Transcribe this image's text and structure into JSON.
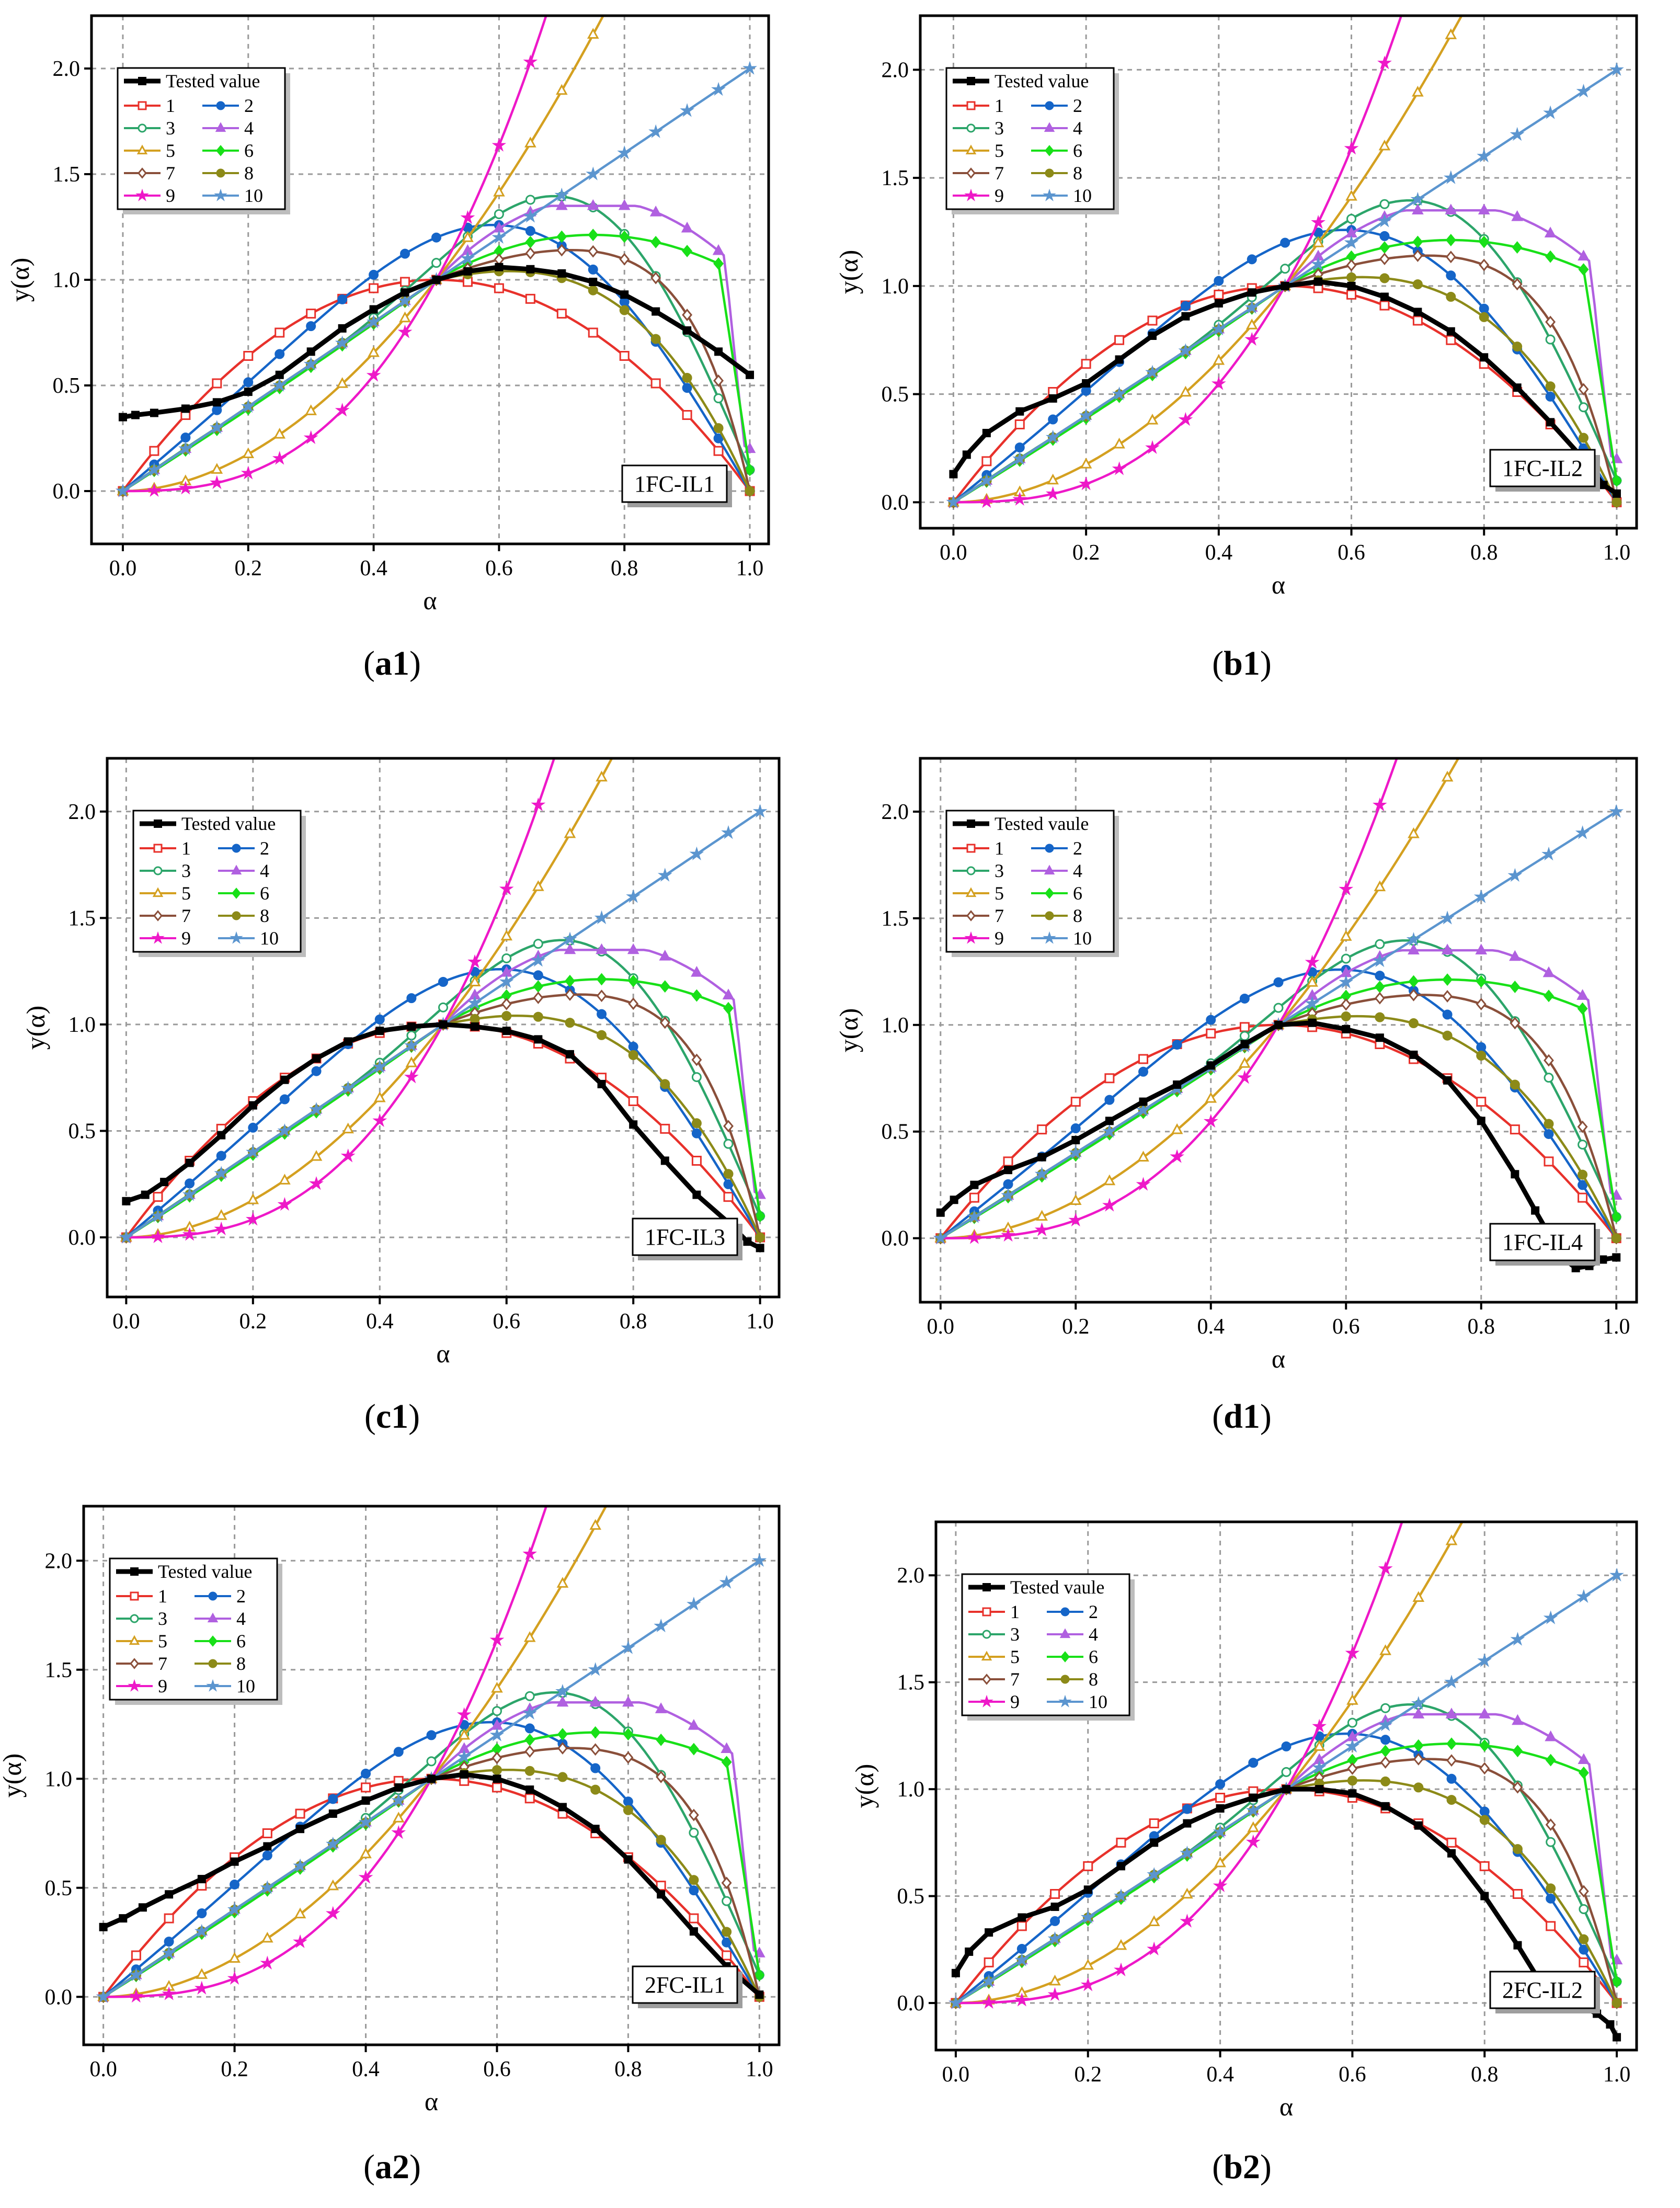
{
  "figure": {
    "model_labels": [
      "1",
      "2",
      "3",
      "4",
      "5",
      "6",
      "7",
      "8",
      "9",
      "10"
    ],
    "model_colors": [
      "#e8312b",
      "#1565c8",
      "#2ca56a",
      "#b060e0",
      "#d4a020",
      "#18e018",
      "#8a4f3a",
      "#8c8a18",
      "#ee18c8",
      "#5b95cf"
    ],
    "model_markers": [
      "square",
      "circle",
      "circle",
      "triangle",
      "triangle",
      "diamond",
      "diamond",
      "circle",
      "star",
      "star"
    ],
    "tested_color": "#000000"
  },
  "chart_data": [
    {
      "type": "line",
      "id": "a1",
      "caption_bold": "a",
      "caption_num": "1",
      "badge": "1FC-IL1",
      "legend_first": "Tested value",
      "xlabel": "α",
      "ylabel": "y(α)",
      "xlim": [
        -0.05,
        1.03
      ],
      "ylim": [
        -0.25,
        2.25
      ],
      "xticks": [
        "0.0",
        "0.2",
        "0.4",
        "0.6",
        "0.8",
        "1.0"
      ],
      "yticks": [
        "0.0",
        "0.5",
        "1.0",
        "1.5",
        "2.0"
      ],
      "tested": {
        "name": "Tested value",
        "x": [
          0.0,
          0.02,
          0.05,
          0.1,
          0.15,
          0.2,
          0.25,
          0.3,
          0.35,
          0.4,
          0.45,
          0.5,
          0.55,
          0.6,
          0.65,
          0.7,
          0.75,
          0.8,
          0.85,
          0.9,
          0.95,
          1.0
        ],
        "y": [
          0.35,
          0.36,
          0.37,
          0.39,
          0.42,
          0.47,
          0.55,
          0.66,
          0.77,
          0.86,
          0.94,
          1.0,
          1.04,
          1.06,
          1.05,
          1.03,
          0.99,
          0.93,
          0.85,
          0.76,
          0.66,
          0.55
        ]
      }
    },
    {
      "type": "line",
      "id": "b1",
      "caption_bold": "b",
      "caption_num": "1",
      "badge": "1FC-IL2",
      "legend_first": "Tested value",
      "xlabel": "α",
      "ylabel": "y(α)",
      "xlim": [
        -0.05,
        1.03
      ],
      "ylim": [
        -0.12,
        2.25
      ],
      "xticks": [
        "0.0",
        "0.2",
        "0.4",
        "0.6",
        "0.8",
        "1.0"
      ],
      "yticks": [
        "0.0",
        "0.5",
        "1.0",
        "1.5",
        "2.0"
      ],
      "tested": {
        "name": "Tested value",
        "x": [
          0.0,
          0.02,
          0.05,
          0.1,
          0.15,
          0.2,
          0.25,
          0.3,
          0.35,
          0.4,
          0.45,
          0.5,
          0.55,
          0.6,
          0.65,
          0.7,
          0.75,
          0.8,
          0.85,
          0.9,
          0.95,
          0.98,
          1.0
        ],
        "y": [
          0.13,
          0.22,
          0.32,
          0.42,
          0.48,
          0.55,
          0.66,
          0.77,
          0.86,
          0.92,
          0.97,
          1.0,
          1.02,
          1.0,
          0.95,
          0.88,
          0.79,
          0.67,
          0.53,
          0.37,
          0.2,
          0.08,
          0.04
        ]
      }
    },
    {
      "type": "line",
      "id": "c1",
      "caption_bold": "c",
      "caption_num": "1",
      "badge": "1FC-IL3",
      "legend_first": "Tested value",
      "xlabel": "α",
      "ylabel": "y(α)",
      "xlim": [
        -0.03,
        1.03
      ],
      "ylim": [
        -0.28,
        2.25
      ],
      "xticks": [
        "0.0",
        "0.2",
        "0.4",
        "0.6",
        "0.8",
        "1.0"
      ],
      "yticks": [
        "0.0",
        "0.5",
        "1.0",
        "1.5",
        "2.0"
      ],
      "tested": {
        "name": "Tested value",
        "x": [
          0.0,
          0.03,
          0.06,
          0.1,
          0.15,
          0.2,
          0.25,
          0.3,
          0.35,
          0.4,
          0.45,
          0.5,
          0.55,
          0.6,
          0.65,
          0.7,
          0.75,
          0.8,
          0.85,
          0.9,
          0.95,
          0.98,
          1.0
        ],
        "y": [
          0.17,
          0.2,
          0.26,
          0.35,
          0.48,
          0.62,
          0.74,
          0.84,
          0.92,
          0.97,
          0.99,
          1.0,
          0.99,
          0.97,
          0.93,
          0.86,
          0.72,
          0.53,
          0.36,
          0.2,
          0.07,
          -0.02,
          -0.05
        ]
      }
    },
    {
      "type": "line",
      "id": "d1",
      "caption_bold": "d",
      "caption_num": "1",
      "badge": "1FC-IL4",
      "legend_first": "Tested vaule",
      "xlabel": "α",
      "ylabel": "y(α)",
      "xlim": [
        -0.03,
        1.03
      ],
      "ylim": [
        -0.3,
        2.25
      ],
      "xticks": [
        "0.0",
        "0.2",
        "0.4",
        "0.6",
        "0.8",
        "1.0"
      ],
      "yticks": [
        "0.0",
        "0.5",
        "1.0",
        "1.5",
        "2.0"
      ],
      "tested": {
        "name": "Tested vaule",
        "x": [
          0.0,
          0.02,
          0.05,
          0.1,
          0.15,
          0.2,
          0.25,
          0.3,
          0.35,
          0.4,
          0.45,
          0.5,
          0.55,
          0.6,
          0.65,
          0.7,
          0.75,
          0.8,
          0.85,
          0.88,
          0.9,
          0.92,
          0.94,
          0.96,
          0.98,
          1.0
        ],
        "y": [
          0.12,
          0.18,
          0.25,
          0.32,
          0.38,
          0.46,
          0.55,
          0.64,
          0.72,
          0.81,
          0.91,
          1.0,
          1.01,
          0.98,
          0.94,
          0.86,
          0.74,
          0.55,
          0.3,
          0.13,
          0.02,
          -0.09,
          -0.14,
          -0.13,
          -0.1,
          -0.09
        ]
      }
    },
    {
      "type": "line",
      "id": "a2",
      "caption_bold": "a",
      "caption_num": "2",
      "badge": "2FC-IL1",
      "legend_first": "Tested value",
      "xlabel": "α",
      "ylabel": "y(α)",
      "xlim": [
        -0.03,
        1.03
      ],
      "ylim": [
        -0.22,
        2.25
      ],
      "xticks": [
        "0.0",
        "0.2",
        "0.4",
        "0.6",
        "0.8",
        "1.0"
      ],
      "yticks": [
        "0.0",
        "0.5",
        "1.0",
        "1.5",
        "2.0"
      ],
      "tested": {
        "name": "Tested value",
        "x": [
          0.0,
          0.03,
          0.06,
          0.1,
          0.15,
          0.2,
          0.25,
          0.3,
          0.35,
          0.4,
          0.45,
          0.5,
          0.55,
          0.6,
          0.65,
          0.7,
          0.75,
          0.8,
          0.85,
          0.9,
          0.95,
          1.0
        ],
        "y": [
          0.32,
          0.36,
          0.41,
          0.47,
          0.54,
          0.62,
          0.69,
          0.77,
          0.84,
          0.9,
          0.96,
          1.0,
          1.02,
          1.0,
          0.95,
          0.87,
          0.77,
          0.63,
          0.47,
          0.3,
          0.14,
          0.01
        ]
      }
    },
    {
      "type": "line",
      "id": "b2",
      "caption_bold": "b",
      "caption_num": "2",
      "badge": "2FC-IL2",
      "legend_first": "Tested vaule",
      "xlabel": "α",
      "ylabel": "y(α)",
      "xlim": [
        -0.03,
        1.03
      ],
      "ylim": [
        -0.22,
        2.25
      ],
      "xticks": [
        "0.0",
        "0.2",
        "0.4",
        "0.6",
        "0.8",
        "1.0"
      ],
      "yticks": [
        "0.0",
        "0.5",
        "1.0",
        "1.5",
        "2.0"
      ],
      "tested": {
        "name": "Tested vaule",
        "x": [
          0.0,
          0.02,
          0.05,
          0.1,
          0.15,
          0.2,
          0.25,
          0.3,
          0.35,
          0.4,
          0.45,
          0.5,
          0.55,
          0.6,
          0.65,
          0.7,
          0.75,
          0.8,
          0.85,
          0.88,
          0.9,
          0.92,
          0.95,
          0.97,
          0.99,
          1.0
        ],
        "y": [
          0.14,
          0.24,
          0.33,
          0.4,
          0.45,
          0.53,
          0.64,
          0.75,
          0.84,
          0.91,
          0.96,
          1.0,
          1.0,
          0.98,
          0.92,
          0.83,
          0.7,
          0.5,
          0.27,
          0.12,
          0.04,
          0.01,
          -0.02,
          -0.05,
          -0.1,
          -0.16
        ]
      }
    }
  ]
}
